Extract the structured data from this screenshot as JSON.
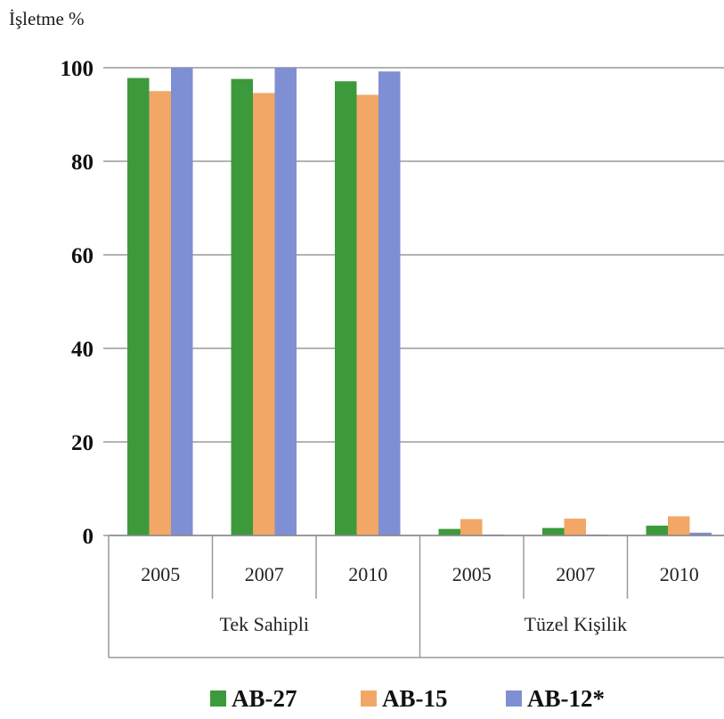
{
  "chart_data": {
    "type": "bar",
    "ylabel": "İşletme %",
    "ylim": [
      0,
      100
    ],
    "yticks": [
      0,
      20,
      40,
      60,
      80,
      100
    ],
    "grid": true,
    "legend_position": "bottom",
    "groups": [
      {
        "label": "Tek Sahipli",
        "categories": [
          "2005",
          "2007",
          "2010"
        ]
      },
      {
        "label": "Tüzel Kişilik",
        "categories": [
          "2005",
          "2007",
          "2010"
        ]
      }
    ],
    "categories": [
      "2005",
      "2007",
      "2010",
      "2005",
      "2007",
      "2010"
    ],
    "series": [
      {
        "name": "AB-27",
        "color": "#3c9a3c",
        "values": [
          97.8,
          97.6,
          97.1,
          1.4,
          1.6,
          2.1
        ]
      },
      {
        "name": "AB-15",
        "color": "#f2a766",
        "values": [
          95.0,
          94.6,
          94.2,
          3.5,
          3.6,
          4.1
        ]
      },
      {
        "name": "AB-12*",
        "color": "#7f8fd3",
        "values": [
          100,
          100,
          99.2,
          0.2,
          0.2,
          0.6
        ]
      }
    ]
  }
}
